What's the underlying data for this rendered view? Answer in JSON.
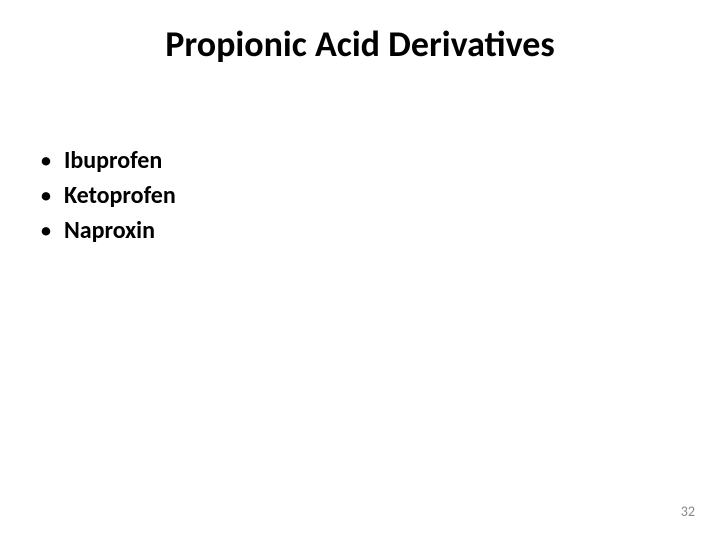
{
  "slide": {
    "title": "Propionic Acid Derivatives",
    "bullets": [
      "Ibuprofen",
      "Ketoprofen",
      "Naproxin"
    ],
    "page_number": "32",
    "styling": {
      "background_color": "#ffffff",
      "title_color": "#000000",
      "title_fontsize": 36,
      "title_fontweight": "bold",
      "bullet_color": "#000000",
      "bullet_fontsize": 24,
      "bullet_fontweight": "bold",
      "bullet_marker": "•",
      "page_number_color": "#888888",
      "page_number_fontsize": 14
    }
  }
}
